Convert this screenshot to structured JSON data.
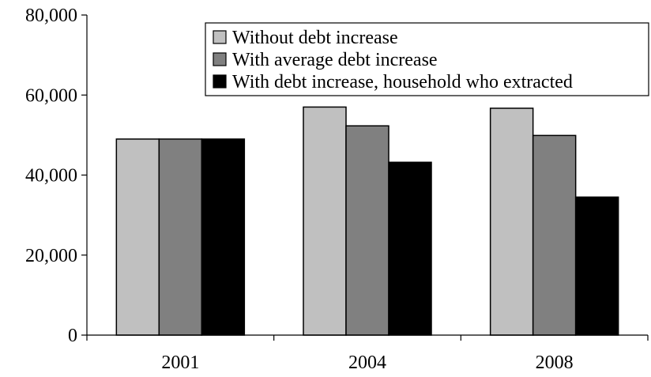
{
  "chart_data": {
    "type": "bar",
    "title": "",
    "xlabel": "",
    "ylabel": "",
    "categories": [
      "2001",
      "2004",
      "2008"
    ],
    "series": [
      {
        "name": "Without debt increase",
        "color": "#c0c0c0",
        "values": [
          49000,
          57000,
          56700
        ]
      },
      {
        "name": "With average debt increase",
        "color": "#808080",
        "values": [
          49000,
          52300,
          49900
        ]
      },
      {
        "name": "With debt increase, household who extracted",
        "color": "#000000",
        "values": [
          49000,
          43200,
          34500
        ]
      }
    ],
    "ylim": [
      0,
      80000
    ],
    "yticks": [
      0,
      20000,
      40000,
      60000,
      80000
    ],
    "ytick_labels": [
      "0",
      "20,000",
      "40,000",
      "60,000",
      "80,000"
    ],
    "grid": false,
    "legend_position": "top-right"
  }
}
